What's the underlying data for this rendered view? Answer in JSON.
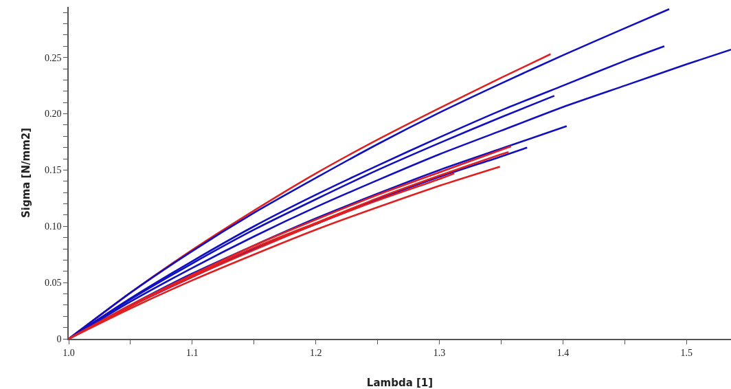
{
  "chart_data": {
    "type": "line",
    "xlabel": "Lambda [1]",
    "ylabel": "Sigma [N/mm2]",
    "xlim": [
      1.0,
      1.536
    ],
    "ylim": [
      0,
      0.295
    ],
    "xticks": [
      {
        "value": 1.0,
        "label": "1.0"
      },
      {
        "value": 1.05,
        "label": null
      },
      1.1,
      {
        "value": 1.15,
        "label": null
      },
      1.2,
      {
        "value": 1.25,
        "label": null
      },
      1.3,
      {
        "value": 1.35,
        "label": null
      },
      1.4,
      {
        "value": 1.45,
        "label": null
      },
      1.5
    ],
    "yticks": [
      0,
      {
        "value": 0.01,
        "label": null
      },
      {
        "value": 0.02,
        "label": null
      },
      {
        "value": 0.03,
        "label": null
      },
      {
        "value": 0.04,
        "label": null
      },
      0.05,
      {
        "value": 0.06,
        "label": null
      },
      {
        "value": 0.07,
        "label": null
      },
      {
        "value": 0.08,
        "label": null
      },
      {
        "value": 0.09,
        "label": null
      },
      {
        "value": 0.1,
        "label": "0.10"
      },
      {
        "value": 0.11,
        "label": null
      },
      {
        "value": 0.12,
        "label": null
      },
      {
        "value": 0.13,
        "label": null
      },
      {
        "value": 0.14,
        "label": null
      },
      0.15,
      {
        "value": 0.16,
        "label": null
      },
      {
        "value": 0.17,
        "label": null
      },
      {
        "value": 0.18,
        "label": null
      },
      {
        "value": 0.19,
        "label": null
      },
      {
        "value": 0.2,
        "label": "0.20"
      },
      {
        "value": 0.21,
        "label": null
      },
      {
        "value": 0.22,
        "label": null
      },
      {
        "value": 0.23,
        "label": null
      },
      {
        "value": 0.24,
        "label": null
      },
      0.25,
      {
        "value": 0.26,
        "label": null
      },
      {
        "value": 0.27,
        "label": null
      },
      {
        "value": 0.28,
        "label": null
      },
      {
        "value": 0.29,
        "label": null
      }
    ],
    "grid": false,
    "marker": "none",
    "line_style": "solid",
    "series": [
      {
        "color": "#e02020",
        "x": [
          1.0,
          1.05,
          1.1,
          1.15,
          1.2,
          1.25,
          1.3,
          1.35,
          1.39
        ],
        "values": [
          0,
          0.041,
          0.079,
          0.114,
          0.147,
          0.177,
          0.205,
          0.232,
          0.253
        ]
      },
      {
        "color": "#1010c0",
        "x": [
          1.0,
          1.05,
          1.1,
          1.15,
          1.2,
          1.25,
          1.3,
          1.35,
          1.4,
          1.45,
          1.486
        ],
        "values": [
          0,
          0.041,
          0.078,
          0.112,
          0.143,
          0.173,
          0.201,
          0.227,
          0.252,
          0.276,
          0.293
        ]
      },
      {
        "color": "#1010c0",
        "x": [
          1.0,
          1.05,
          1.1,
          1.15,
          1.2,
          1.25,
          1.3,
          1.35,
          1.4,
          1.45,
          1.482
        ],
        "values": [
          0,
          0.036,
          0.069,
          0.1,
          0.128,
          0.154,
          0.179,
          0.203,
          0.225,
          0.247,
          0.26
        ]
      },
      {
        "color": "#1010c0",
        "x": [
          1.0,
          1.05,
          1.1,
          1.15,
          1.2,
          1.25,
          1.3,
          1.35,
          1.4,
          1.45,
          1.5,
          1.536
        ],
        "values": [
          0,
          0.033,
          0.063,
          0.091,
          0.117,
          0.141,
          0.164,
          0.185,
          0.206,
          0.225,
          0.244,
          0.257
        ]
      },
      {
        "color": "#1010c0",
        "x": [
          1.0,
          1.05,
          1.1,
          1.15,
          1.2,
          1.25,
          1.3,
          1.35,
          1.393
        ],
        "values": [
          0,
          0.035,
          0.067,
          0.097,
          0.124,
          0.15,
          0.174,
          0.197,
          0.216
        ]
      },
      {
        "color": "#1010c0",
        "x": [
          1.0,
          1.05,
          1.1,
          1.15,
          1.2,
          1.25,
          1.3,
          1.35,
          1.403
        ],
        "values": [
          0,
          0.03,
          0.058,
          0.083,
          0.107,
          0.129,
          0.15,
          0.169,
          0.189
        ]
      },
      {
        "color": "#1010c0",
        "x": [
          1.0,
          1.05,
          1.1,
          1.15,
          1.2,
          1.25,
          1.3,
          1.35,
          1.371
        ],
        "values": [
          0,
          0.029,
          0.055,
          0.08,
          0.102,
          0.124,
          0.144,
          0.162,
          0.17
        ]
      },
      {
        "color": "#e02020",
        "x": [
          1.0,
          1.05,
          1.1,
          1.15,
          1.2,
          1.25,
          1.3,
          1.35,
          1.358
        ],
        "values": [
          0,
          0.03,
          0.057,
          0.083,
          0.106,
          0.128,
          0.148,
          0.168,
          0.171
        ]
      },
      {
        "color": "#e02020",
        "x": [
          1.0,
          1.05,
          1.1,
          1.15,
          1.2,
          1.25,
          1.3,
          1.35,
          1.356
        ],
        "values": [
          0,
          0.029,
          0.056,
          0.081,
          0.103,
          0.125,
          0.145,
          0.164,
          0.166
        ]
      },
      {
        "color": "#e02020",
        "x": [
          1.0,
          1.05,
          1.1,
          1.15,
          1.2,
          1.25,
          1.3,
          1.349
        ],
        "values": [
          0,
          0.027,
          0.052,
          0.075,
          0.097,
          0.117,
          0.136,
          0.153
        ]
      },
      {
        "color": "#e02020",
        "x": [
          1.0,
          1.05,
          1.1,
          1.15,
          1.2,
          1.25,
          1.3,
          1.312
        ],
        "values": [
          0,
          0.029,
          0.055,
          0.079,
          0.102,
          0.123,
          0.142,
          0.147
        ]
      }
    ]
  }
}
